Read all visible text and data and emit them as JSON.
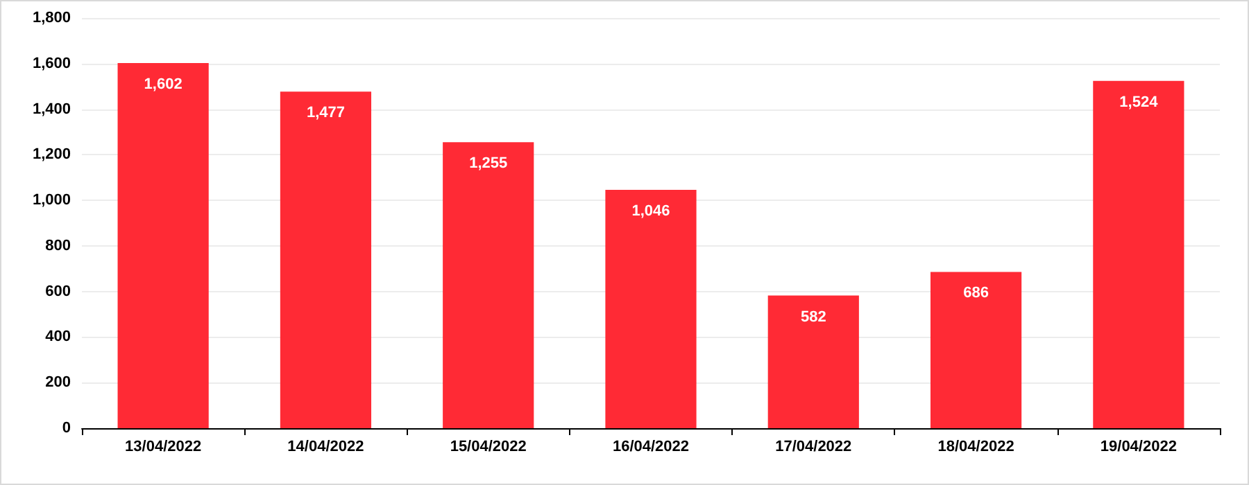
{
  "chart_data": {
    "type": "bar",
    "categories": [
      "13/04/2022",
      "14/04/2022",
      "15/04/2022",
      "16/04/2022",
      "17/04/2022",
      "18/04/2022",
      "19/04/2022"
    ],
    "values": [
      1602,
      1477,
      1255,
      1046,
      582,
      686,
      1524
    ],
    "value_labels": [
      "1,602",
      "1,477",
      "1,255",
      "1,046",
      "582",
      "686",
      "1,524"
    ],
    "color": "#ff2a35",
    "ylim": [
      0,
      1800
    ],
    "yticks": [
      "0",
      {
        "value": 200,
        "label": "200"
      },
      {
        "value": 400,
        "label": "400"
      },
      {
        "value": 600,
        "label": "600"
      },
      {
        "value": 800,
        "label": "800"
      },
      {
        "value": 1000,
        "label": "1,000"
      },
      {
        "value": 1200,
        "label": "1,200"
      },
      {
        "value": 1400,
        "label": "1,400"
      },
      {
        "value": 1600,
        "label": "1,600"
      },
      {
        "value": 1800,
        "label": "1,800"
      }
    ],
    "grid": "y"
  }
}
